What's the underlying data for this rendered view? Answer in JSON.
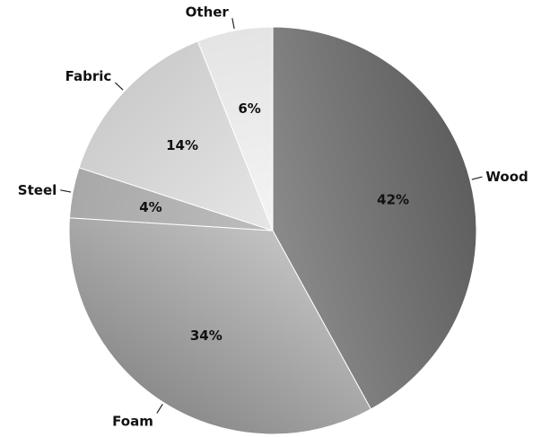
{
  "chart_data": {
    "type": "pie",
    "categories": [
      "Wood",
      "Foam",
      "Steel",
      "Fabric",
      "Other"
    ],
    "values": [
      42,
      34,
      4,
      14,
      6
    ],
    "value_labels": [
      "42%",
      "34%",
      "4%",
      "14%",
      "6%"
    ],
    "title": "",
    "legend": "none",
    "start_angle_deg": 90,
    "direction": "clockwise",
    "colors": {
      "Wood": [
        "#8a8a8a",
        "#5e5e5e"
      ],
      "Foam": [
        "#c2c2c2",
        "#8c8c8c"
      ],
      "Steel": [
        "#bdbdbd",
        "#a8a8a8"
      ],
      "Fabric": [
        "#e6e6e6",
        "#cccccc"
      ],
      "Other": [
        "#f4f4f4",
        "#e4e4e4"
      ]
    }
  }
}
